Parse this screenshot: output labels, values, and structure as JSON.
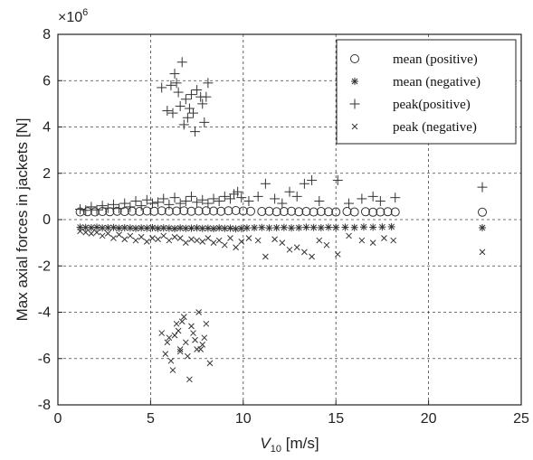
{
  "chart_data": {
    "type": "scatter",
    "title": "",
    "xlabel": {
      "base": "V",
      "sub": "10",
      "unit": " [m/s]"
    },
    "ylabel": "Max axial forces in jackets [N]",
    "y_multiplier": {
      "base": "×10",
      "exp": "6"
    },
    "xlim": [
      0,
      25
    ],
    "ylim": [
      -8,
      8
    ],
    "x_ticks": [
      "0",
      "5",
      "10",
      "15",
      "20",
      "25"
    ],
    "y_ticks": [
      "-8",
      "-6",
      "-4",
      "-2",
      "0",
      "2",
      "4",
      "6",
      "8"
    ],
    "grid": true,
    "legend_position": "top-right",
    "series": [
      {
        "name": "mean (positive)",
        "marker": "circle",
        "x": [
          1.2,
          1.6,
          2.0,
          2.4,
          2.8,
          3.2,
          3.6,
          4.0,
          4.4,
          4.8,
          5.2,
          5.6,
          6.0,
          6.4,
          6.8,
          7.2,
          7.6,
          8.0,
          8.4,
          8.8,
          9.2,
          9.6,
          10.0,
          10.4,
          11.0,
          11.4,
          11.8,
          12.2,
          12.6,
          13.0,
          13.4,
          13.8,
          14.2,
          14.6,
          15.0,
          15.6,
          16.0,
          16.6,
          17.0,
          17.4,
          17.8,
          18.2,
          22.9
        ],
        "y": [
          0.33,
          0.34,
          0.33,
          0.35,
          0.34,
          0.36,
          0.35,
          0.36,
          0.35,
          0.37,
          0.36,
          0.38,
          0.36,
          0.37,
          0.38,
          0.36,
          0.37,
          0.38,
          0.37,
          0.36,
          0.38,
          0.39,
          0.37,
          0.36,
          0.35,
          0.36,
          0.34,
          0.35,
          0.36,
          0.34,
          0.35,
          0.33,
          0.35,
          0.34,
          0.33,
          0.35,
          0.33,
          0.34,
          0.32,
          0.33,
          0.34,
          0.33,
          0.32
        ]
      },
      {
        "name": "mean (negative)",
        "marker": "asterisk",
        "x": [
          1.2,
          1.5,
          1.8,
          2.1,
          2.4,
          2.7,
          3.0,
          3.3,
          3.6,
          3.9,
          4.2,
          4.5,
          4.8,
          5.1,
          5.4,
          5.7,
          6.0,
          6.3,
          6.6,
          6.9,
          7.2,
          7.5,
          7.8,
          8.1,
          8.4,
          8.7,
          9.0,
          9.3,
          9.6,
          9.9,
          10.2,
          10.6,
          11.0,
          11.4,
          11.8,
          12.2,
          12.6,
          13.0,
          13.4,
          13.8,
          14.2,
          14.6,
          15.0,
          15.5,
          16.0,
          16.5,
          17.0,
          17.5,
          18.0,
          22.9
        ],
        "y": [
          -0.33,
          -0.34,
          -0.35,
          -0.33,
          -0.36,
          -0.35,
          -0.34,
          -0.37,
          -0.35,
          -0.36,
          -0.38,
          -0.36,
          -0.37,
          -0.35,
          -0.38,
          -0.36,
          -0.37,
          -0.39,
          -0.36,
          -0.38,
          -0.37,
          -0.36,
          -0.38,
          -0.37,
          -0.39,
          -0.36,
          -0.38,
          -0.37,
          -0.4,
          -0.38,
          -0.36,
          -0.35,
          -0.34,
          -0.36,
          -0.35,
          -0.34,
          -0.36,
          -0.35,
          -0.33,
          -0.34,
          -0.35,
          -0.33,
          -0.34,
          -0.33,
          -0.34,
          -0.32,
          -0.33,
          -0.32,
          -0.31,
          -0.35
        ]
      },
      {
        "name": "peak(positive)",
        "marker": "plus",
        "x": [
          1.2,
          1.5,
          1.8,
          2.1,
          2.4,
          2.7,
          3.0,
          3.3,
          3.6,
          3.9,
          4.2,
          4.5,
          4.8,
          5.1,
          5.4,
          5.7,
          6.0,
          6.3,
          6.6,
          6.9,
          7.2,
          7.5,
          7.8,
          8.1,
          8.4,
          8.7,
          9.0,
          9.3,
          9.5,
          9.7,
          9.9,
          10.3,
          10.8,
          11.2,
          11.7,
          12.1,
          12.5,
          12.9,
          13.3,
          13.7,
          14.1,
          15.1,
          15.7,
          16.4,
          17.0,
          17.4,
          18.2,
          22.9,
          5.6,
          5.9,
          6.1,
          6.3,
          6.5,
          6.7,
          6.9,
          7.1,
          7.3,
          7.5,
          7.7,
          7.9,
          8.1,
          6.2,
          6.6,
          7.0,
          7.4,
          7.8,
          8.0,
          6.4,
          6.8,
          7.2
        ],
        "y": [
          0.45,
          0.4,
          0.55,
          0.42,
          0.6,
          0.5,
          0.65,
          0.48,
          0.7,
          0.55,
          0.8,
          0.6,
          0.85,
          0.7,
          0.75,
          0.9,
          0.65,
          0.95,
          0.7,
          0.8,
          1.0,
          0.75,
          0.85,
          0.7,
          0.9,
          0.8,
          1.0,
          0.9,
          1.1,
          1.2,
          0.95,
          0.8,
          1.0,
          1.55,
          0.9,
          0.7,
          1.2,
          1.0,
          1.55,
          1.7,
          0.8,
          1.7,
          0.7,
          0.9,
          1.0,
          0.8,
          0.95,
          1.4,
          5.7,
          4.7,
          5.8,
          6.3,
          5.5,
          6.8,
          5.2,
          4.8,
          4.6,
          5.6,
          5.3,
          4.2,
          5.9,
          4.6,
          4.9,
          4.4,
          3.8,
          5.0,
          5.3,
          5.9,
          4.1,
          5.4
        ]
      },
      {
        "name": "peak (negative)",
        "marker": "cross",
        "x": [
          1.2,
          1.5,
          1.8,
          2.1,
          2.4,
          2.7,
          3.0,
          3.3,
          3.6,
          3.9,
          4.2,
          4.5,
          4.8,
          5.1,
          5.4,
          5.7,
          6.0,
          6.3,
          6.6,
          6.9,
          7.2,
          7.5,
          7.8,
          8.1,
          8.4,
          8.7,
          9.0,
          9.3,
          9.6,
          9.9,
          10.3,
          10.8,
          11.2,
          11.7,
          12.1,
          12.5,
          12.9,
          13.3,
          13.7,
          14.1,
          14.5,
          15.1,
          15.7,
          16.4,
          17.0,
          17.6,
          18.1,
          22.9,
          5.6,
          5.8,
          6.0,
          6.2,
          6.4,
          6.6,
          6.8,
          7.0,
          7.2,
          7.4,
          7.6,
          7.8,
          8.0,
          8.2,
          6.1,
          6.5,
          6.9,
          7.3,
          7.7,
          6.3,
          6.7,
          7.1,
          7.5,
          7.9,
          5.9,
          6.6
        ],
        "y": [
          -0.5,
          -0.55,
          -0.6,
          -0.55,
          -0.7,
          -0.6,
          -0.8,
          -0.65,
          -0.85,
          -0.7,
          -0.9,
          -0.75,
          -0.95,
          -0.8,
          -0.85,
          -0.7,
          -0.9,
          -0.75,
          -0.8,
          -1.0,
          -0.85,
          -0.9,
          -0.95,
          -0.8,
          -1.0,
          -0.9,
          -1.1,
          -0.8,
          -1.2,
          -0.95,
          -0.8,
          -0.9,
          -1.6,
          -0.85,
          -1.0,
          -1.3,
          -1.2,
          -1.4,
          -1.6,
          -0.9,
          -1.1,
          -1.5,
          -0.7,
          -0.9,
          -1.0,
          -0.8,
          -0.9,
          -1.4,
          -4.9,
          -5.8,
          -5.1,
          -6.5,
          -4.5,
          -5.6,
          -4.2,
          -5.9,
          -4.6,
          -5.2,
          -4.0,
          -5.4,
          -4.5,
          -6.2,
          -6.1,
          -4.8,
          -5.3,
          -4.9,
          -5.6,
          -5.0,
          -4.4,
          -6.9,
          -5.6,
          -5.1,
          -5.3,
          -5.7
        ]
      }
    ]
  }
}
